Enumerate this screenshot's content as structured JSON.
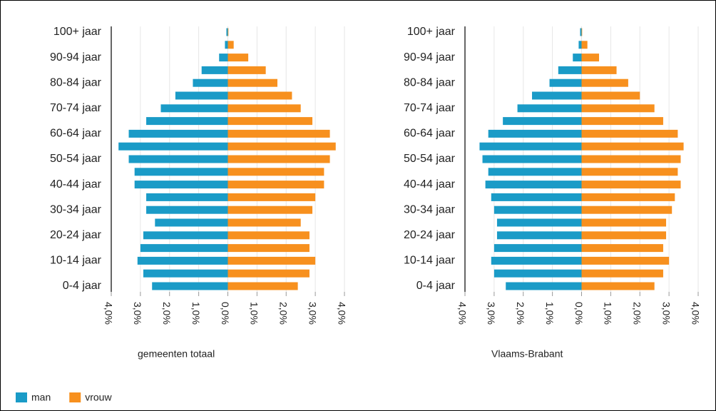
{
  "chart_data": [
    {
      "type": "bar",
      "orientation": "horizontal",
      "xlabel": "gemeenten totaal",
      "categories": [
        "100+ jaar",
        null,
        "90-94 jaar",
        null,
        "80-84 jaar",
        null,
        "70-74 jaar",
        null,
        "60-64 jaar",
        null,
        "50-54 jaar",
        null,
        "40-44 jaar",
        null,
        "30-34 jaar",
        null,
        "20-24 jaar",
        null,
        "10-14 jaar",
        null,
        "0-4 jaar"
      ],
      "series": [
        {
          "name": "man",
          "color": "#1a9bc7",
          "values": [
            -0.05,
            -0.1,
            -0.3,
            -0.9,
            -1.2,
            -1.8,
            -2.3,
            -2.8,
            -3.4,
            -3.75,
            -3.4,
            -3.2,
            -3.2,
            -2.8,
            -2.8,
            -2.5,
            -2.9,
            -3.0,
            -3.1,
            -2.9,
            -2.6
          ]
        },
        {
          "name": "vrouw",
          "color": "#f7901e",
          "values": [
            0.02,
            0.2,
            0.7,
            1.3,
            1.7,
            2.2,
            2.5,
            2.9,
            3.5,
            3.7,
            3.5,
            3.3,
            3.3,
            3.0,
            2.9,
            2.5,
            2.8,
            2.8,
            3.0,
            2.8,
            2.4
          ]
        }
      ],
      "xlim": [
        -4,
        4
      ],
      "xticks": [
        {
          "value": -4,
          "label": "4,0%"
        },
        {
          "value": -3,
          "label": "3,0%"
        },
        {
          "value": -2,
          "label": "2,0%"
        },
        {
          "value": -1,
          "label": "1,0%"
        },
        {
          "value": 0,
          "label": "0,0%"
        },
        {
          "value": 1,
          "label": "1,0%"
        },
        {
          "value": 2,
          "label": "2,0%"
        },
        {
          "value": 3,
          "label": "3,0%"
        },
        {
          "value": 4,
          "label": "4,0%"
        }
      ],
      "grid": true
    },
    {
      "type": "bar",
      "orientation": "horizontal",
      "xlabel": "Vlaams-Brabant",
      "categories": [
        "100+ jaar",
        null,
        "90-94 jaar",
        null,
        "80-84 jaar",
        null,
        "70-74 jaar",
        null,
        "60-64 jaar",
        null,
        "50-54 jaar",
        null,
        "40-44 jaar",
        null,
        "30-34 jaar",
        null,
        "20-24 jaar",
        null,
        "10-14 jaar",
        null,
        "0-4 jaar"
      ],
      "series": [
        {
          "name": "man",
          "color": "#1a9bc7",
          "values": [
            -0.05,
            -0.1,
            -0.3,
            -0.8,
            -1.1,
            -1.7,
            -2.2,
            -2.7,
            -3.2,
            -3.5,
            -3.4,
            -3.2,
            -3.3,
            -3.1,
            -3.0,
            -2.9,
            -2.9,
            -3.0,
            -3.1,
            -3.0,
            -2.6
          ]
        },
        {
          "name": "vrouw",
          "color": "#f7901e",
          "values": [
            0.02,
            0.2,
            0.6,
            1.2,
            1.6,
            2.0,
            2.5,
            2.8,
            3.3,
            3.5,
            3.4,
            3.3,
            3.4,
            3.2,
            3.1,
            2.9,
            2.9,
            2.8,
            3.0,
            2.8,
            2.5
          ]
        }
      ],
      "xlim": [
        -4,
        4
      ],
      "xticks": [
        {
          "value": -4,
          "label": "4,0%"
        },
        {
          "value": -3,
          "label": "3,0%"
        },
        {
          "value": -2,
          "label": "2,0%"
        },
        {
          "value": -1,
          "label": "1,0%"
        },
        {
          "value": 0,
          "label": "0,0%"
        },
        {
          "value": 1,
          "label": "1,0%"
        },
        {
          "value": 2,
          "label": "2,0%"
        },
        {
          "value": 3,
          "label": "3,0%"
        },
        {
          "value": 4,
          "label": "4,0%"
        }
      ],
      "grid": true
    }
  ]
}
